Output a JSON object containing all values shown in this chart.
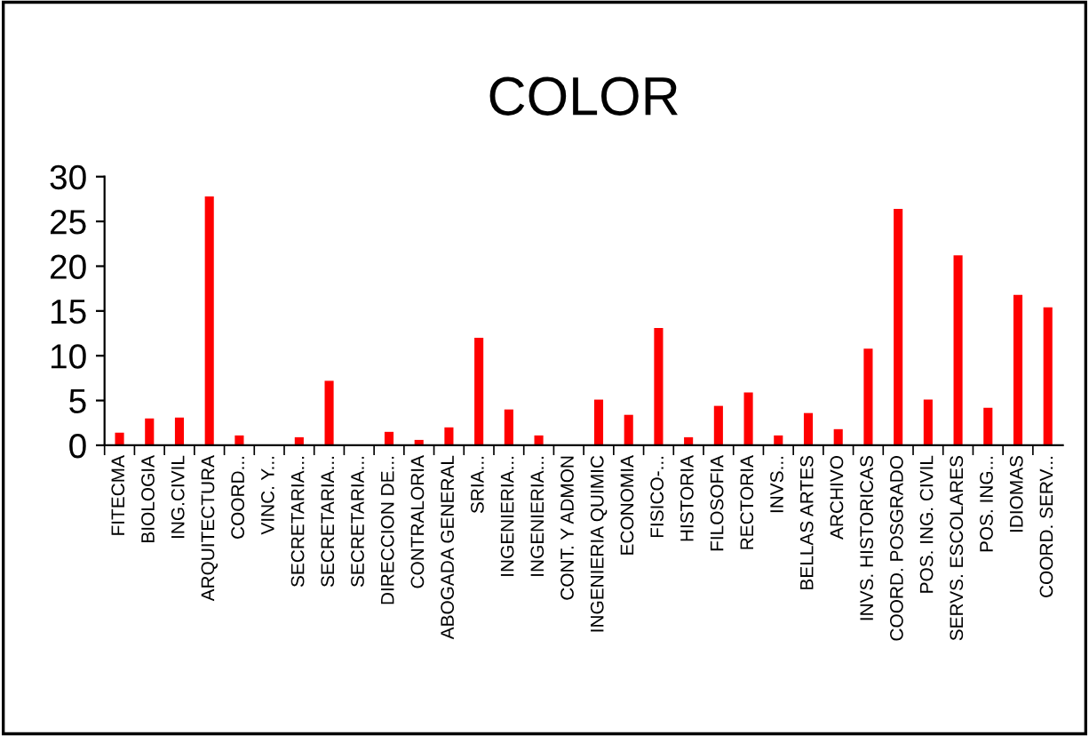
{
  "chart_data": {
    "type": "bar",
    "title": "COLOR",
    "categories": [
      "FITECMA",
      "BIOLOGIA",
      "ING.CIVIL",
      "ARQUITECTURA",
      "COORD...",
      "VINC. Y...",
      "SECRETARIA...",
      "SECRETARIA...",
      "SECRETARIA...",
      "DIRECCION DE...",
      "CONTRALORIA",
      "ABOGADA GENERAL",
      "SRIA...",
      "INGENIERIA...",
      "INGENIERIA...",
      "CONT. Y ADMON",
      "INGENIERIA QUIMIC",
      "ECONOMIA",
      "FISICO-...",
      "HISTORIA",
      "FILOSOFIA",
      "RECTORIA",
      "INVS...",
      "BELLAS ARTES",
      "ARCHIVO",
      "INVS. HISTORICAS",
      "COORD. POSGRADO",
      "POS. ING. CIVIL",
      "SERVS. ESCOLARES",
      "POS. ING...",
      "IDIOMAS",
      "COORD. SERV..."
    ],
    "values": [
      1.4,
      3,
      3.1,
      27.8,
      1.1,
      0,
      0.9,
      7.2,
      0,
      1.5,
      0.6,
      2,
      12,
      4,
      1.1,
      0,
      5.1,
      3.4,
      13.1,
      0.9,
      4.4,
      5.9,
      1.1,
      3.6,
      1.8,
      10.8,
      26.4,
      5.1,
      21.2,
      4.2,
      16.8,
      15.4
    ],
    "color": "#ff0000",
    "ylim": [
      0,
      30
    ],
    "yticks": [
      0,
      5,
      10,
      15,
      20,
      25,
      30
    ],
    "grid": false,
    "legend": false
  }
}
